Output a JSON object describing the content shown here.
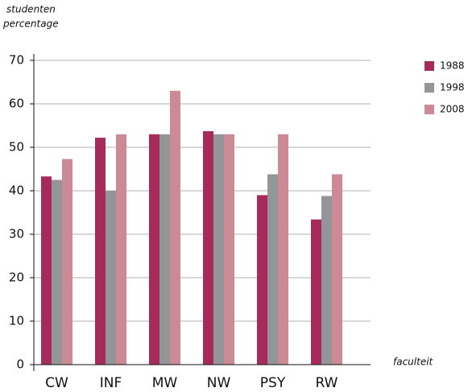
{
  "chart_data": {
    "type": "bar",
    "y_label": [
      "studenten",
      "percentage"
    ],
    "x_label": "faculteit",
    "categories": [
      "CW",
      "INF",
      "MW",
      "NW",
      "PSY",
      "RW"
    ],
    "series": [
      {
        "name": "1988",
        "color": "#a62b5a",
        "values": [
          43.3,
          52.2,
          53,
          53.7,
          39,
          33.4
        ]
      },
      {
        "name": "1998",
        "color": "#939598",
        "values": [
          42.5,
          40,
          53,
          53,
          43.8,
          38.8
        ]
      },
      {
        "name": "2008",
        "color": "#cc8a96",
        "values": [
          47.3,
          53,
          63,
          53,
          53,
          43.8
        ]
      }
    ],
    "ylim": [
      0,
      70
    ],
    "yticks": [
      0,
      10,
      20,
      30,
      40,
      50,
      60,
      70
    ],
    "grid": true,
    "legend": "right"
  }
}
